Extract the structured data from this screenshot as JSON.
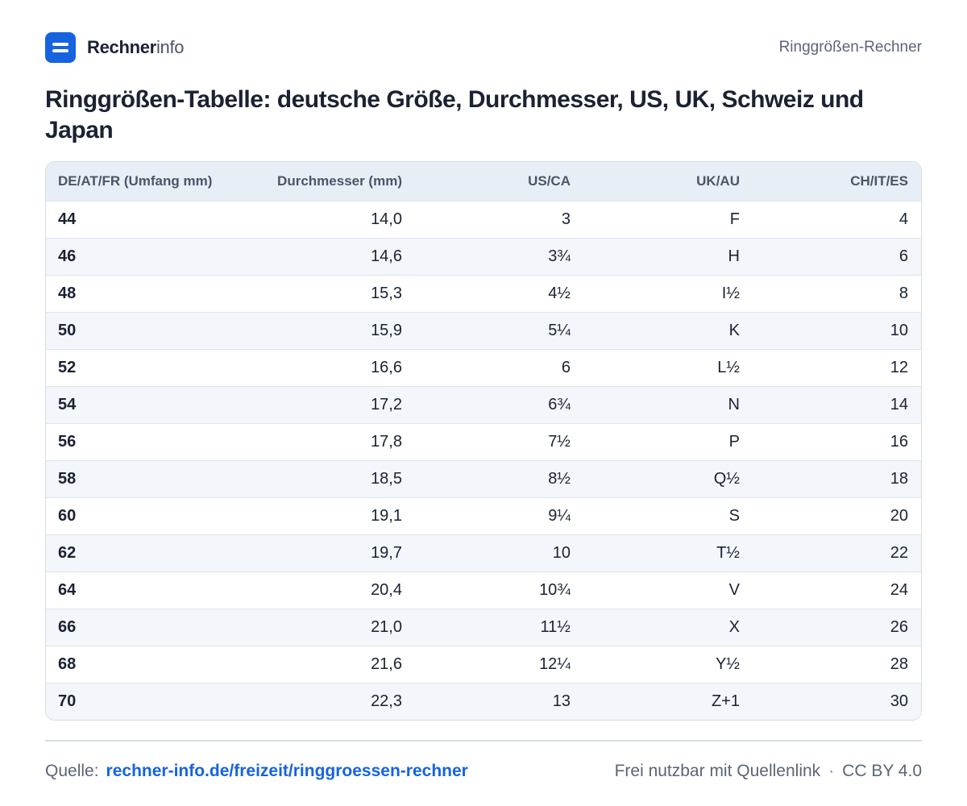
{
  "header": {
    "brand_strong": "Rechner",
    "brand_light": "info",
    "logo_icon": "equals-logo-icon",
    "brand_color": "#1663e0",
    "right_label": "Ringgrößen-Rechner"
  },
  "title": "Ringgrößen-Tabelle: deutsche Größe, Durchmesser, US, UK, Schweiz und Japan",
  "table": {
    "columns": [
      "DE/AT/FR (Umfang mm)",
      "Durchmesser (mm)",
      "US/CA",
      "UK/AU",
      "CH/IT/ES"
    ],
    "rows": [
      [
        "44",
        "14,0",
        "3",
        "F",
        "4"
      ],
      [
        "46",
        "14,6",
        "3¾",
        "H",
        "6"
      ],
      [
        "48",
        "15,3",
        "4½",
        "I½",
        "8"
      ],
      [
        "50",
        "15,9",
        "5¼",
        "K",
        "10"
      ],
      [
        "52",
        "16,6",
        "6",
        "L½",
        "12"
      ],
      [
        "54",
        "17,2",
        "6¾",
        "N",
        "14"
      ],
      [
        "56",
        "17,8",
        "7½",
        "P",
        "16"
      ],
      [
        "58",
        "18,5",
        "8½",
        "Q½",
        "18"
      ],
      [
        "60",
        "19,1",
        "9¼",
        "S",
        "20"
      ],
      [
        "62",
        "19,7",
        "10",
        "T½",
        "22"
      ],
      [
        "64",
        "20,4",
        "10¾",
        "V",
        "24"
      ],
      [
        "66",
        "21,0",
        "11½",
        "X",
        "26"
      ],
      [
        "68",
        "21,6",
        "12¼",
        "Y½",
        "28"
      ],
      [
        "70",
        "22,3",
        "13",
        "Z+1",
        "30"
      ]
    ]
  },
  "footer": {
    "source_label": "Quelle:",
    "source_link": "rechner-info.de/freizeit/ringgroessen-rechner",
    "license_text": "Frei nutzbar mit Quellenlink",
    "separator": "·",
    "license": "CC BY 4.0"
  }
}
